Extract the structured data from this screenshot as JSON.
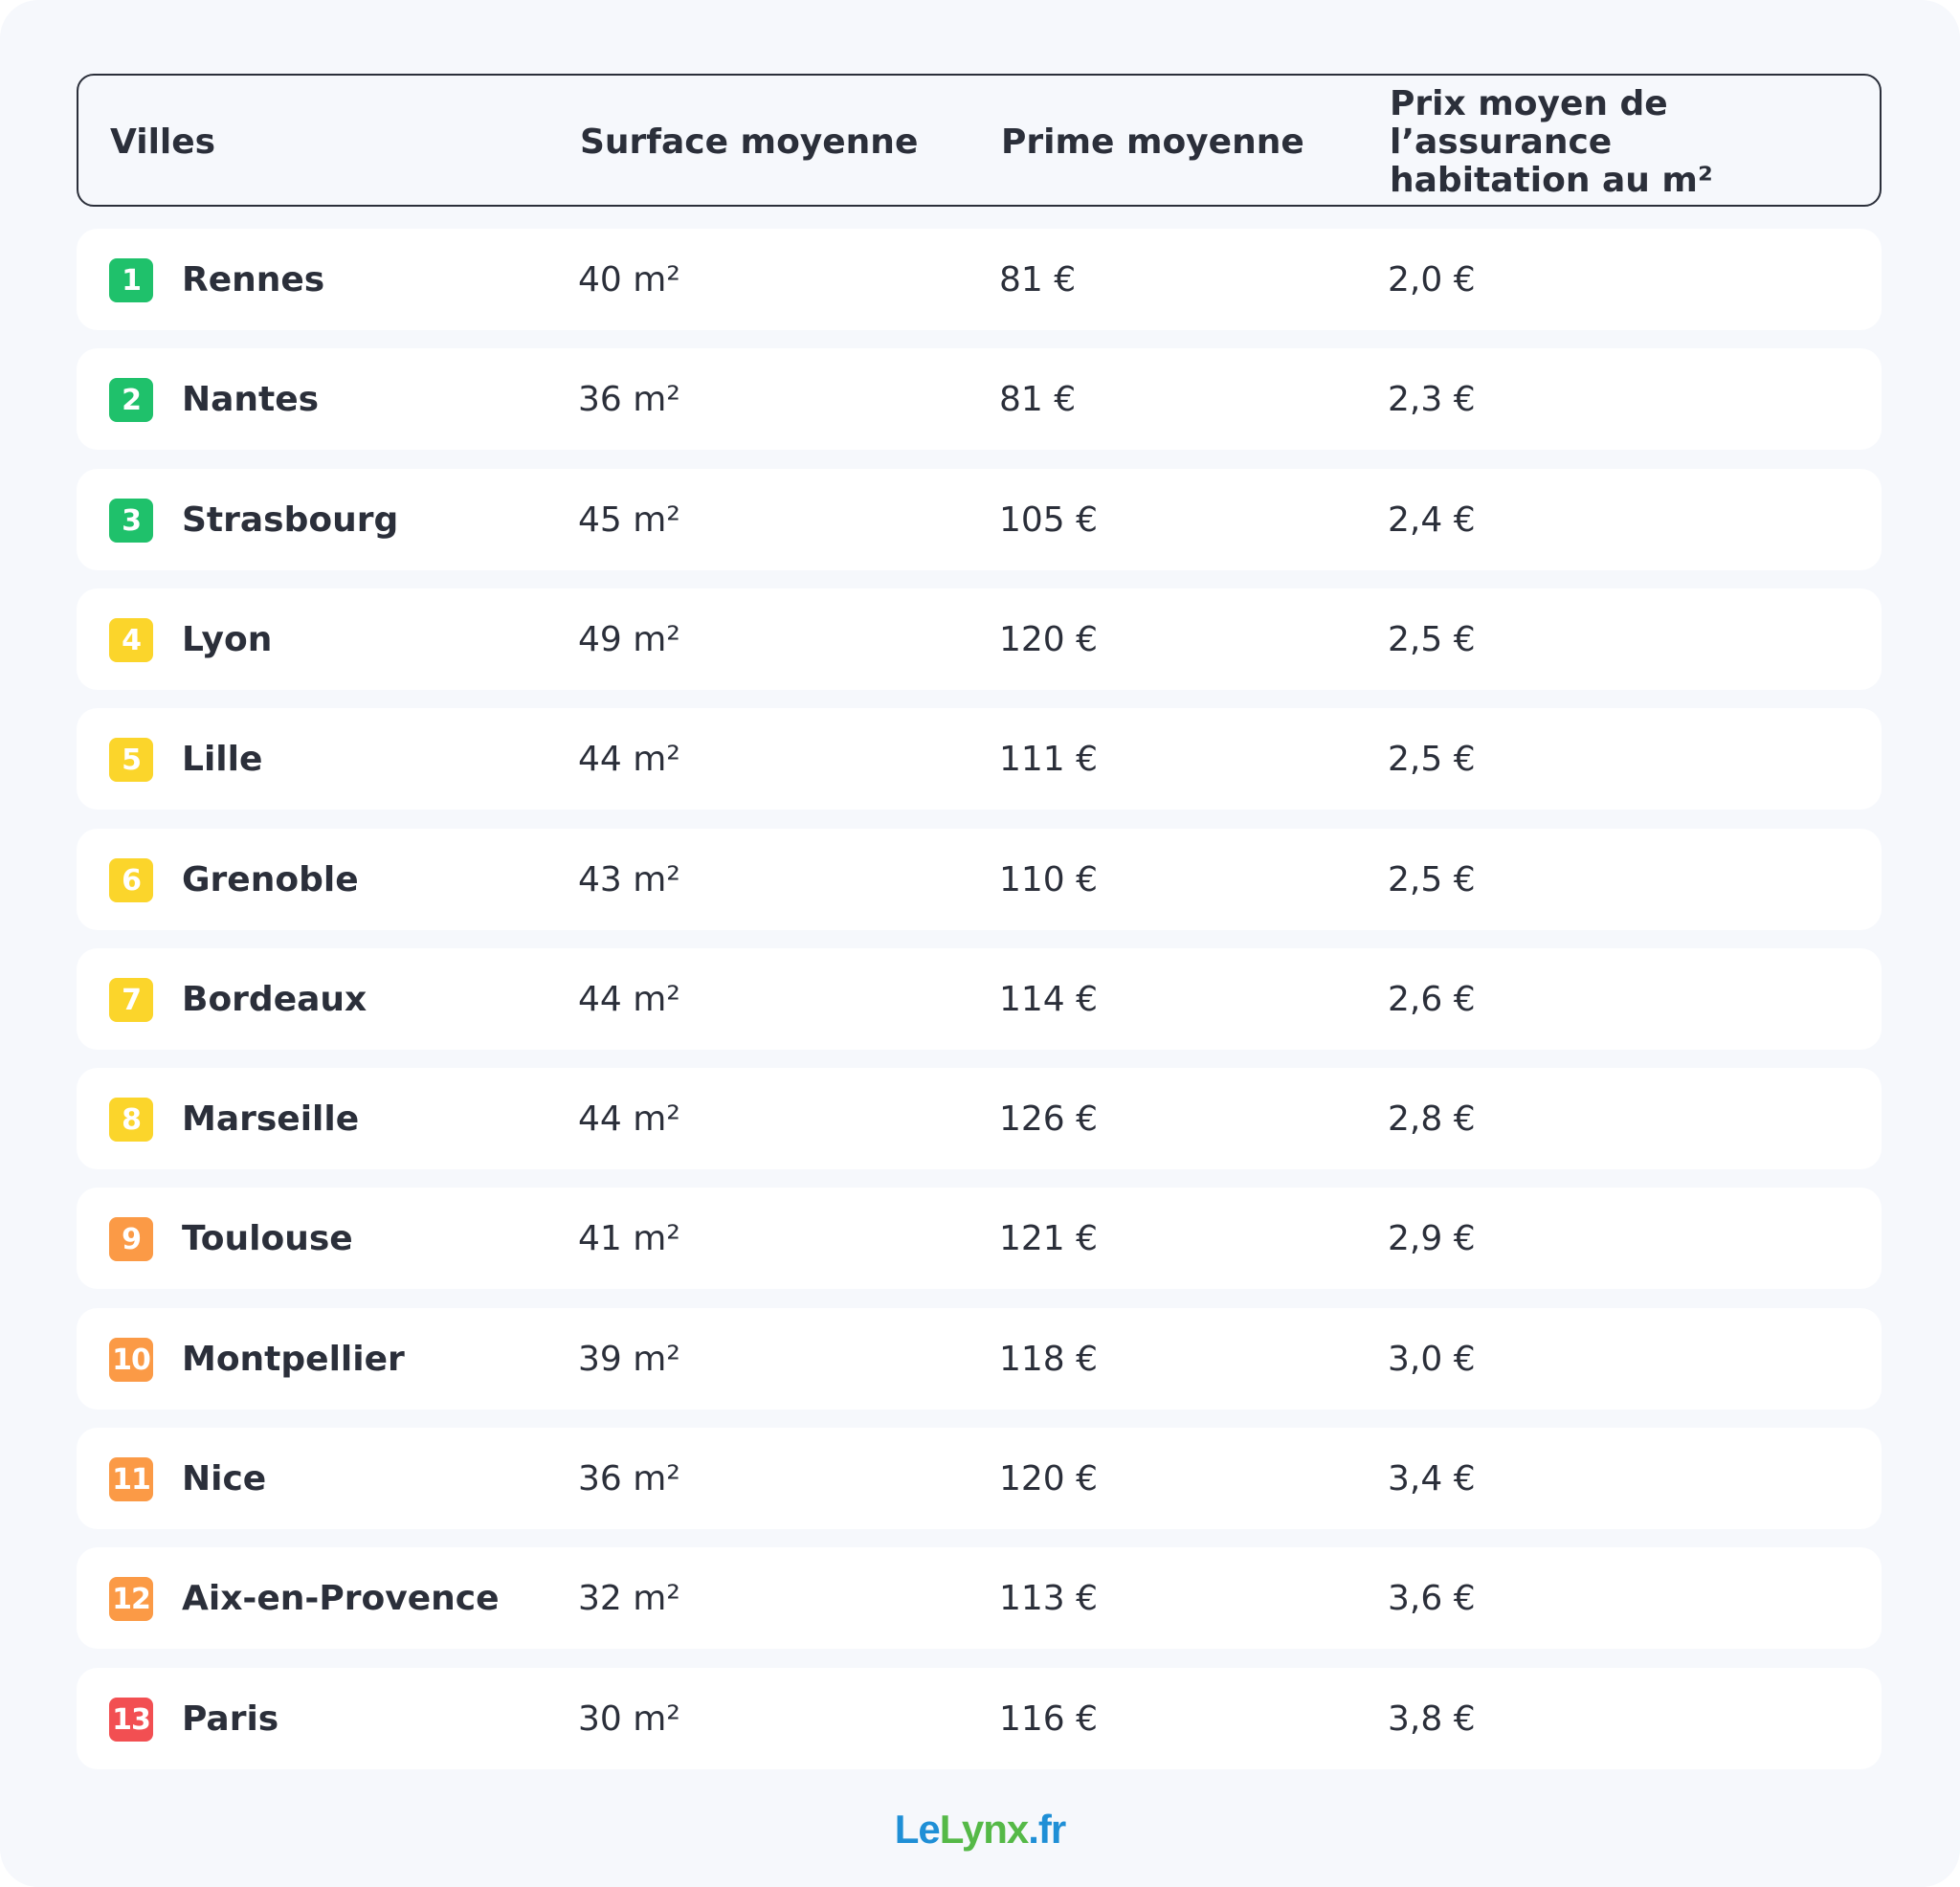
{
  "chart_data": {
    "type": "table",
    "columns": [
      "Villes",
      "Surface moyenne",
      "Prime moyenne",
      "Prix moyen de l’assurance\nhabitation au m²"
    ],
    "rows": [
      {
        "rank": "1",
        "city": "Rennes",
        "surface": "40 m²",
        "prime": "81 €",
        "prix_m2": "2,0 €",
        "color": "#1fc16b"
      },
      {
        "rank": "2",
        "city": "Nantes",
        "surface": "36 m²",
        "prime": "81 €",
        "prix_m2": "2,3 €",
        "color": "#1fc16b"
      },
      {
        "rank": "3",
        "city": "Strasbourg",
        "surface": "45 m²",
        "prime": "105 €",
        "prix_m2": "2,4 €",
        "color": "#1fc16b"
      },
      {
        "rank": "4",
        "city": "Lyon",
        "surface": "49 m²",
        "prime": "120 €",
        "prix_m2": "2,5 €",
        "color": "#fbd52b"
      },
      {
        "rank": "5",
        "city": "Lille",
        "surface": "44 m²",
        "prime": "111 €",
        "prix_m2": "2,5 €",
        "color": "#fbd52b"
      },
      {
        "rank": "6",
        "city": "Grenoble",
        "surface": "43 m²",
        "prime": "110 €",
        "prix_m2": "2,5 €",
        "color": "#fbd52b"
      },
      {
        "rank": "7",
        "city": "Bordeaux",
        "surface": "44 m²",
        "prime": "114 €",
        "prix_m2": "2,6 €",
        "color": "#fbd52b"
      },
      {
        "rank": "8",
        "city": "Marseille",
        "surface": "44 m²",
        "prime": "126 €",
        "prix_m2": "2,8 €",
        "color": "#fbd52b"
      },
      {
        "rank": "9",
        "city": "Toulouse",
        "surface": "41 m²",
        "prime": "121 €",
        "prix_m2": "2,9 €",
        "color": "#fb9a46"
      },
      {
        "rank": "10",
        "city": "Montpellier",
        "surface": "39 m²",
        "prime": "118 €",
        "prix_m2": "3,0 €",
        "color": "#fb9a46"
      },
      {
        "rank": "11",
        "city": "Nice",
        "surface": "36 m²",
        "prime": "120 €",
        "prix_m2": "3,4 €",
        "color": "#fb9a46"
      },
      {
        "rank": "12",
        "city": "Aix-en-Provence",
        "surface": "32 m²",
        "prime": "113 €",
        "prix_m2": "3,6 €",
        "color": "#fb9a46"
      },
      {
        "rank": "13",
        "city": "Paris",
        "surface": "30 m²",
        "prime": "116 €",
        "prix_m2": "3,8 €",
        "color": "#f24f52"
      }
    ]
  },
  "logo": {
    "le": "Le",
    "lynx": "Lynx",
    "fr": ".fr"
  }
}
